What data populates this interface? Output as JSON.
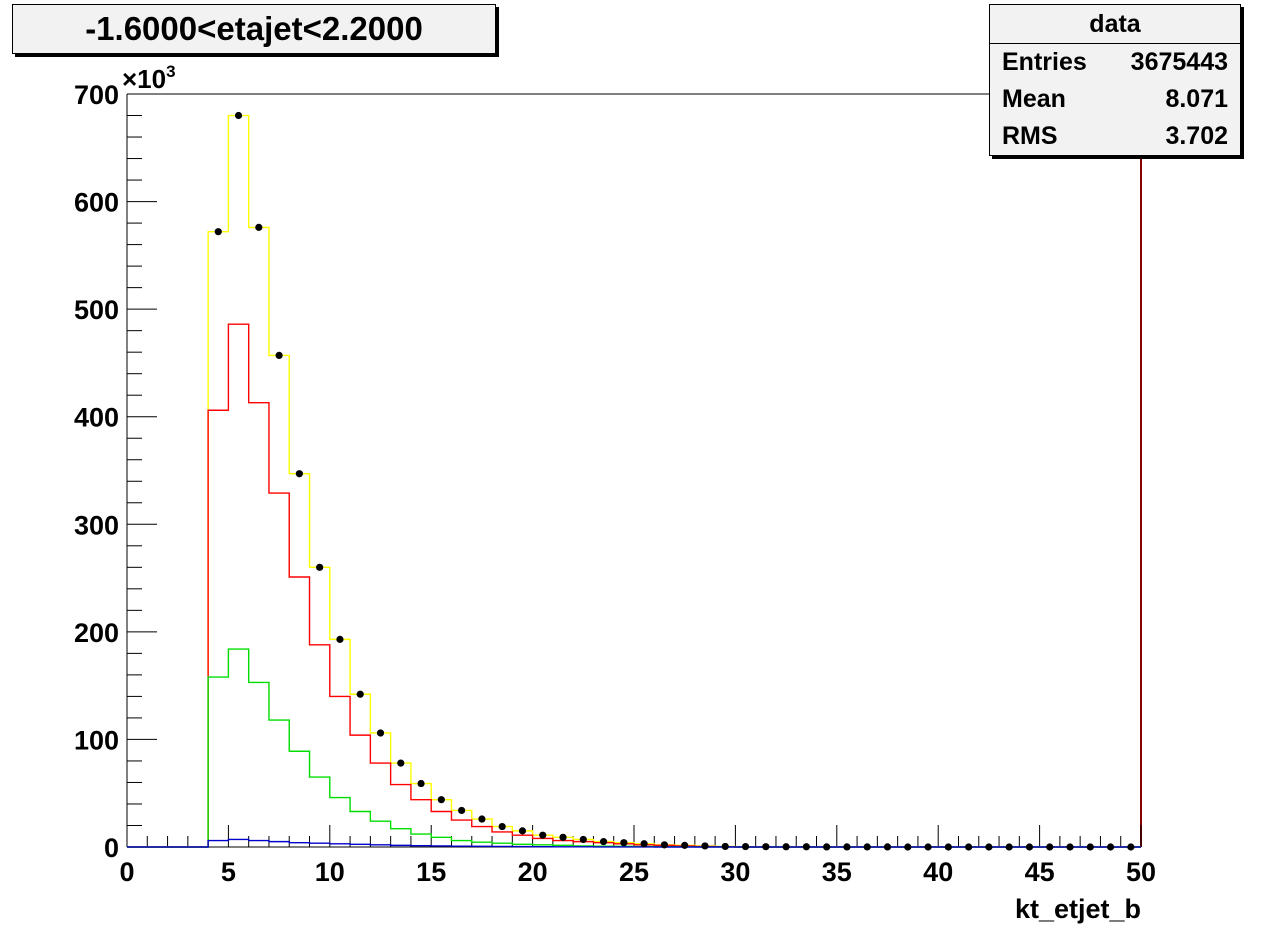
{
  "chart_data": {
    "type": "histogram",
    "title": "-1.6000<etajet<2.2000",
    "xlabel": "kt_etjet_b",
    "ylabel": "",
    "y_multiplier": "×10",
    "y_multiplier_exp": "3",
    "xlim": [
      0,
      50
    ],
    "ylim": [
      0,
      700
    ],
    "x_ticks": [
      0,
      5,
      10,
      15,
      20,
      25,
      30,
      35,
      40,
      45,
      50
    ],
    "y_ticks": [
      0,
      100,
      200,
      300,
      400,
      500,
      600,
      700
    ],
    "bin_edges": [
      4,
      5,
      6,
      7,
      8,
      9,
      10,
      11,
      12,
      13,
      14,
      15,
      16,
      17,
      18,
      19,
      20,
      21,
      22,
      23,
      24,
      25,
      26,
      27,
      28,
      29,
      30
    ],
    "series": [
      {
        "color": "#ffff00",
        "values": [
          572,
          680,
          576,
          457,
          347,
          260,
          193,
          142,
          106,
          78,
          59,
          44,
          34,
          26,
          19,
          15,
          11,
          9,
          7,
          5,
          4,
          3,
          2,
          1.5,
          1,
          0.5
        ]
      },
      {
        "color": "#ff0000",
        "values": [
          406,
          486,
          413,
          329,
          251,
          188,
          140,
          104,
          78,
          58,
          44,
          33,
          25,
          19,
          14,
          11,
          8,
          6,
          5,
          4,
          3,
          2,
          1.5,
          1,
          0.5,
          0.3
        ]
      },
      {
        "color": "#00dd00",
        "values": [
          158,
          184,
          153,
          118,
          89,
          65,
          46,
          33,
          24,
          17,
          12,
          9,
          6,
          4.5,
          3.5,
          2.5,
          2,
          1.5,
          1,
          0.8,
          0.6,
          0.4,
          0.3,
          0.2,
          0.1,
          0.1
        ]
      },
      {
        "color": "#0000cc",
        "values": [
          6,
          7,
          6,
          5,
          4,
          3.5,
          3,
          2.5,
          2,
          1.5,
          1.2,
          1,
          0.8,
          0.6,
          0.5,
          0.4,
          0.3,
          0.2,
          0.2,
          0.1,
          0.1,
          0.1,
          0,
          0,
          0,
          0
        ]
      }
    ],
    "data_points": {
      "color": "#000000",
      "x": [
        4.5,
        5.5,
        6.5,
        7.5,
        8.5,
        9.5,
        10.5,
        11.5,
        12.5,
        13.5,
        14.5,
        15.5,
        16.5,
        17.5,
        18.5,
        19.5,
        20.5,
        21.5,
        22.5,
        23.5,
        24.5,
        25.5,
        26.5,
        27.5,
        28.5,
        29.5,
        30.5,
        31.5,
        32.5,
        33.5,
        34.5,
        35.5,
        36.5,
        37.5,
        38.5,
        39.5,
        40.5,
        41.5,
        42.5,
        43.5,
        44.5,
        45.5,
        46.5,
        47.5,
        48.5,
        49.5
      ],
      "y": [
        572,
        680,
        576,
        457,
        347,
        260,
        193,
        142,
        106,
        78,
        59,
        44,
        34,
        26,
        19,
        15,
        11,
        9,
        7,
        5,
        4,
        3,
        2,
        1.5,
        1,
        0.5,
        0.4,
        0.3,
        0.2,
        0.2,
        0.1,
        0.1,
        0.1,
        0.1,
        0,
        0,
        0,
        0,
        0,
        0,
        0,
        0,
        0,
        0,
        0,
        0
      ]
    },
    "frame_right_color": "#880000",
    "grid": false
  },
  "stats": {
    "title": "data",
    "rows": [
      {
        "label": "Entries",
        "value": "3675443"
      },
      {
        "label": "Mean",
        "value": "8.071"
      },
      {
        "label": "RMS",
        "value": "3.702"
      }
    ]
  }
}
